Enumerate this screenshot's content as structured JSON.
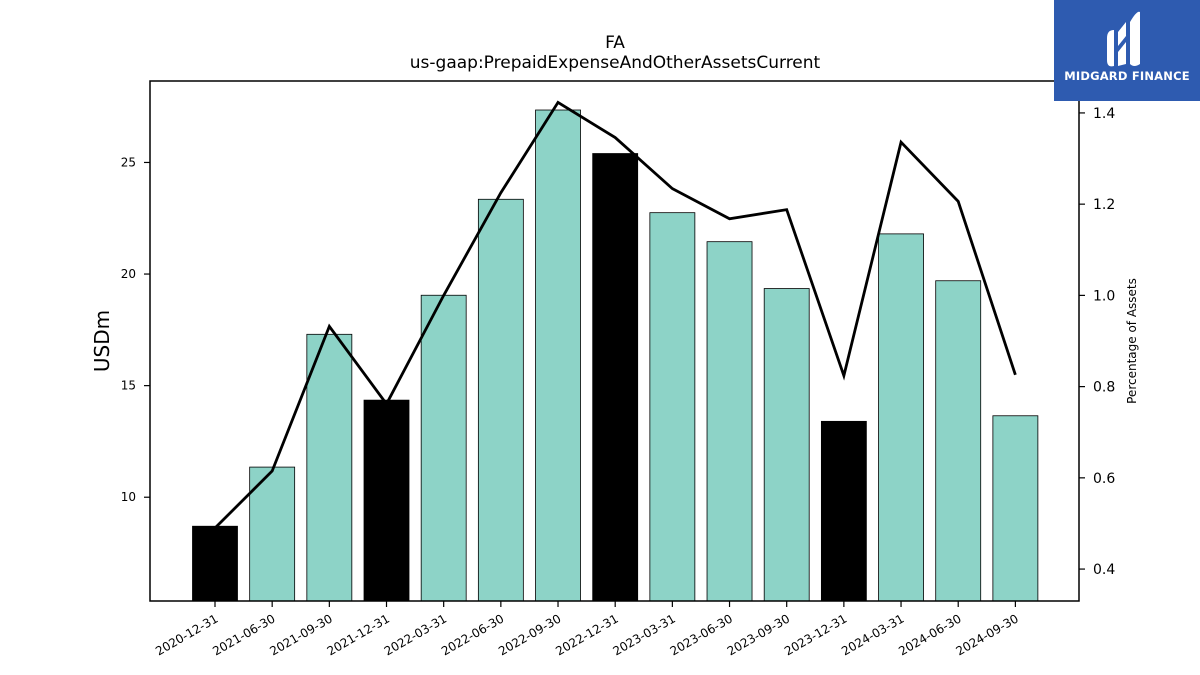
{
  "brand": {
    "name": "MIDGARD FINANCE",
    "color": "#2e5bb0"
  },
  "chart_data": {
    "type": "bar",
    "title": "FA",
    "subtitle": "us-gaap:PrepaidExpenseAndOtherAssetsCurrent",
    "ylabel": "USDm",
    "y2label": "Percentage of Assets",
    "categories": [
      "2020-12-31",
      "2021-06-30",
      "2021-09-30",
      "2021-12-31",
      "2022-03-31",
      "2022-06-30",
      "2022-09-30",
      "2022-12-31",
      "2023-03-31",
      "2023-06-30",
      "2023-09-30",
      "2023-12-31",
      "2024-03-31",
      "2024-06-30",
      "2024-09-30"
    ],
    "series": [
      {
        "type": "bar",
        "axis": "left",
        "values": [
          8.7,
          11.35,
          17.3,
          14.35,
          19.05,
          23.35,
          27.35,
          25.4,
          22.75,
          21.45,
          19.35,
          13.4,
          21.8,
          19.7,
          13.65
        ]
      },
      {
        "type": "line",
        "axis": "right",
        "values": [
          0.49,
          0.615,
          0.932,
          0.762,
          1.0,
          1.225,
          1.423,
          1.346,
          1.234,
          1.168,
          1.188,
          0.824,
          1.336,
          1.206,
          0.826
        ]
      }
    ],
    "bar_colors": [
      "#000000",
      "#8dd3c7",
      "#8dd3c7",
      "#000000",
      "#8dd3c7",
      "#8dd3c7",
      "#8dd3c7",
      "#000000",
      "#8dd3c7",
      "#8dd3c7",
      "#8dd3c7",
      "#000000",
      "#8dd3c7",
      "#8dd3c7",
      "#8dd3c7"
    ],
    "line_color": "#000000",
    "ylim": [
      5.35,
      28.65
    ],
    "yticks": [
      10,
      15,
      20,
      25
    ],
    "y2lim": [
      0.33,
      1.47
    ],
    "y2ticks": [
      0.4,
      0.6,
      0.8,
      1.0,
      1.2,
      1.4
    ],
    "grid": false
  }
}
